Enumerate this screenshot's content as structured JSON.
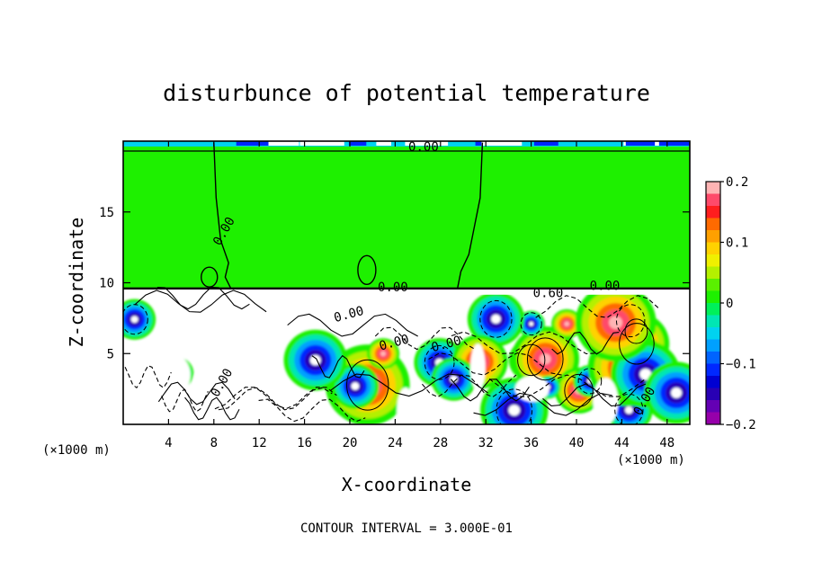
{
  "chart_data": {
    "type": "heatmap",
    "title": "disturbunce of potential temperature",
    "xlabel": "X-coordinate",
    "ylabel": "Z-coordinate",
    "x_unit": "(×1000 m)",
    "z_unit": "(×1000 m)",
    "xlim": [
      0,
      50
    ],
    "ylim": [
      0,
      20
    ],
    "x_ticks": [
      4,
      8,
      12,
      16,
      20,
      24,
      28,
      32,
      36,
      40,
      44,
      48
    ],
    "y_ticks": [
      5,
      10,
      15
    ],
    "note": "CONTOUR INTERVAL = 3.000E-01",
    "contour_labels": [
      {
        "text": "0.00",
        "x": 26.5,
        "z": 19.3
      },
      {
        "text": "0.00",
        "x": 9.2,
        "z": 13.5
      },
      {
        "text": "0.00",
        "x": 23.8,
        "z": 9.4
      },
      {
        "text": "0.00",
        "x": 42.5,
        "z": 9.5
      },
      {
        "text": "0.60",
        "x": 37.5,
        "z": 9.0
      },
      {
        "text": "0.00",
        "x": 20.0,
        "z": 7.5
      },
      {
        "text": "0.00",
        "x": 24.0,
        "z": 5.5
      },
      {
        "text": "0.00",
        "x": 28.6,
        "z": 5.4
      },
      {
        "text": "0.00",
        "x": 9.0,
        "z": 2.8
      },
      {
        "text": "0.00",
        "x": 46.3,
        "z": 1.5
      }
    ],
    "colorbar": {
      "min": -0.2,
      "max": 0.2,
      "tick_labels": [
        "0.2",
        "0.1",
        "0",
        "−0.1",
        "−0.2"
      ],
      "tick_values": [
        0.2,
        0.1,
        0,
        -0.1,
        -0.2
      ],
      "colors": [
        "#ffb4b4",
        "#ff4a6a",
        "#ff1e1e",
        "#ff6a00",
        "#ffa000",
        "#ffd200",
        "#f0f000",
        "#b4f000",
        "#5af000",
        "#1ef000",
        "#00f05a",
        "#00e6b4",
        "#00d2f0",
        "#00a0ff",
        "#0064ff",
        "#0028ff",
        "#0000d2",
        "#2800b4",
        "#6400b4",
        "#9600aa"
      ]
    },
    "tropopause_z": 9.6,
    "upper_level_value": 0.0,
    "grid": false
  }
}
